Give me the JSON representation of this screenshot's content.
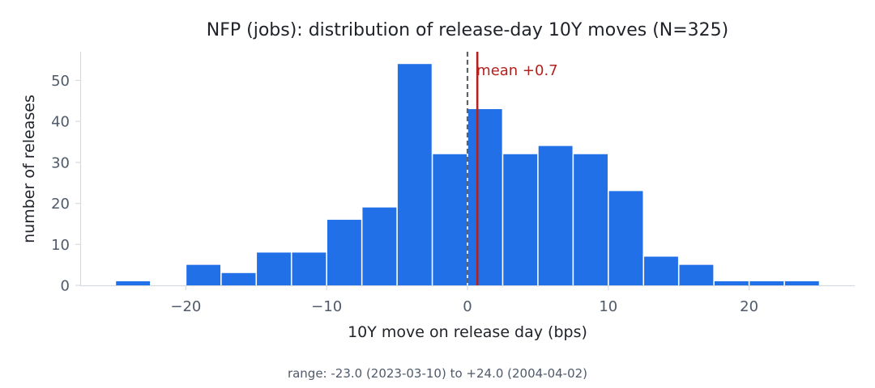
{
  "chart_data": {
    "type": "bar",
    "title": "NFP (jobs): distribution of release-day 10Y moves (N=325)",
    "xlabel": "10Y move on release day (bps)",
    "ylabel": "number of releases",
    "bin_width": 2.5,
    "bins": [
      {
        "x0": -25.0,
        "count": 1
      },
      {
        "x0": -22.5,
        "count": 0
      },
      {
        "x0": -20.0,
        "count": 5
      },
      {
        "x0": -17.5,
        "count": 3
      },
      {
        "x0": -15.0,
        "count": 8
      },
      {
        "x0": -12.5,
        "count": 8
      },
      {
        "x0": -10.0,
        "count": 16
      },
      {
        "x0": -7.5,
        "count": 19
      },
      {
        "x0": -5.0,
        "count": 54
      },
      {
        "x0": -2.5,
        "count": 32
      },
      {
        "x0": 0.0,
        "count": 43
      },
      {
        "x0": 2.5,
        "count": 32
      },
      {
        "x0": 5.0,
        "count": 34
      },
      {
        "x0": 7.5,
        "count": 32
      },
      {
        "x0": 10.0,
        "count": 23
      },
      {
        "x0": 12.5,
        "count": 7
      },
      {
        "x0": 15.0,
        "count": 5
      },
      {
        "x0": 17.5,
        "count": 1
      },
      {
        "x0": 20.0,
        "count": 1
      },
      {
        "x0": 22.5,
        "count": 1
      }
    ],
    "xlim": [
      -27.5,
      27.5
    ],
    "ylim": [
      0,
      57
    ],
    "xticks": [
      -20,
      -10,
      0,
      10,
      20
    ],
    "xtick_labels": [
      "−20",
      "−10",
      "0",
      "10",
      "20"
    ],
    "yticks": [
      0,
      10,
      20,
      30,
      40,
      50
    ],
    "ytick_labels": [
      "0",
      "10",
      "20",
      "30",
      "40",
      "50"
    ],
    "zero_line": {
      "x": 0,
      "style": "dashed",
      "color": "#5f6368"
    },
    "mean_line": {
      "x": 0.7,
      "label": "mean +0.7",
      "color": "#b2221f"
    },
    "bar_color": "#2170e8",
    "footer": "range: -23.0 (2023-03-10) to +24.0 (2004-04-02)"
  }
}
